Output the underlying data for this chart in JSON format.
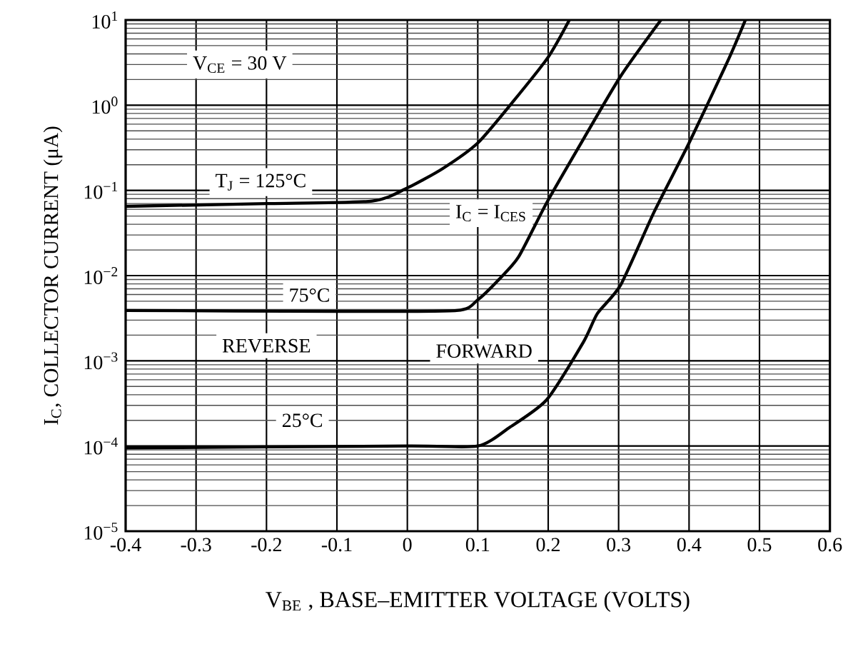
{
  "chart_data": {
    "type": "line",
    "xlabel": "V$_{BE}$ , BASE–EMITTER VOLTAGE (VOLTS)",
    "ylabel": "I$_{C}$, COLLECTOR CURRENT (μA)",
    "log": "y",
    "grid": true,
    "line_style": "solid",
    "xlim": [
      -0.4,
      0.6
    ],
    "xticks": [
      -0.4,
      -0.3,
      -0.2,
      -0.1,
      0,
      0.1,
      0.2,
      0.3,
      0.4,
      0.5,
      0.6
    ],
    "ylim": [
      1e-05,
      10
    ],
    "yticks": [
      {
        "value": 1e-05,
        "label": "10$^{−5}$"
      },
      {
        "value": 0.0001,
        "label": "10$^{−4}$"
      },
      {
        "value": 0.001,
        "label": "10$^{−3}$"
      },
      {
        "value": 0.01,
        "label": "10$^{−2}$"
      },
      {
        "value": 0.1,
        "label": "10$^{−1}$"
      },
      {
        "value": 1,
        "label": "10$^{0}$"
      },
      {
        "value": 10,
        "label": "10$^{1}$"
      }
    ],
    "series": [
      {
        "name": "T$_{J}$ = 125°C",
        "color": "#000000",
        "x": [
          -0.4,
          -0.2,
          -0.05,
          0,
          0.05,
          0.1,
          0.15,
          0.2,
          0.23
        ],
        "values": [
          0.065,
          0.07,
          0.075,
          0.107,
          0.18,
          0.36,
          1.1,
          3.67,
          10
        ]
      },
      {
        "name": "75°C",
        "color": "#000000",
        "x": [
          -0.4,
          -0.1,
          0.07,
          0.1,
          0.13,
          0.158,
          0.198,
          0.25,
          0.303,
          0.36
        ],
        "values": [
          0.0039,
          0.0038,
          0.0039,
          0.0052,
          0.009,
          0.0166,
          0.072,
          0.4,
          2.2,
          10
        ]
      },
      {
        "name": "25°C",
        "color": "#000000",
        "x": [
          -0.4,
          0,
          0.1,
          0.145,
          0.198,
          0.25,
          0.27,
          0.303,
          0.35,
          0.4,
          0.455,
          0.48
        ],
        "values": [
          9.5e-05,
          0.0001,
          0.0001,
          0.000165,
          0.00035,
          0.00166,
          0.0036,
          0.0078,
          0.055,
          0.36,
          3.3,
          10
        ]
      }
    ],
    "annotations": [
      "V$_{CE}$ = 30 V",
      "I$_{C}$ = I$_{CES}$",
      "REVERSE",
      "FORWARD"
    ]
  }
}
